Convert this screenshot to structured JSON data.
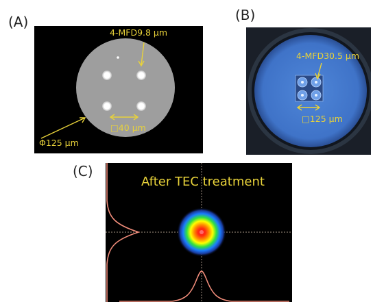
{
  "panels": {
    "a": {
      "label": "(A)",
      "mfd": "4-MFD9.8 µm",
      "pitch": "□40 µm",
      "diameter": "Φ125 µm"
    },
    "b": {
      "label": "(B)",
      "mfd": "4-MFD30.5 µm",
      "pitch": "□125 µm"
    },
    "c": {
      "label": "(C)",
      "title": "After TEC treatment"
    }
  },
  "colors": {
    "annotation": "#e8d23a",
    "profile_curve": "#f08c7a"
  }
}
